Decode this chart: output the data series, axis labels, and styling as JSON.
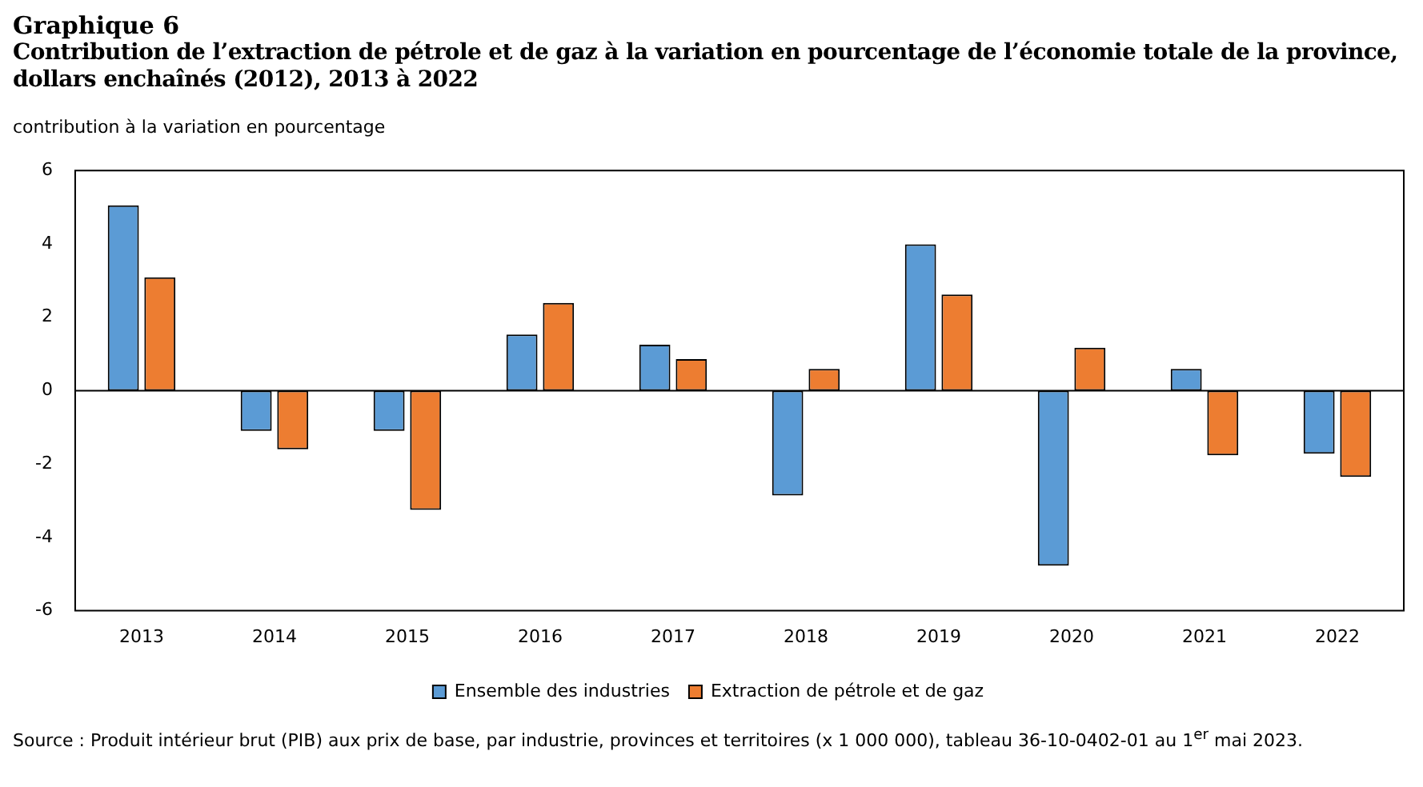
{
  "chart_data": {
    "type": "bar",
    "title": "Graphique 6",
    "subtitle": "Contribution de l’extraction de pétrole et de gaz à la variation en pourcentage de l’économie totale de la province, dollars enchaînés (2012), 2013 à 2022",
    "ylabel": "contribution à la variation en pourcentage",
    "categories": [
      "2013",
      "2014",
      "2015",
      "2016",
      "2017",
      "2018",
      "2019",
      "2020",
      "2021",
      "2022"
    ],
    "series": [
      {
        "name": "Ensemble des industries",
        "color": "#5b9bd5",
        "values": [
          5.05,
          -1.1,
          -1.1,
          1.53,
          1.25,
          -2.86,
          3.99,
          -4.77,
          0.59,
          -1.72
        ]
      },
      {
        "name": "Extraction de pétrole et de gaz",
        "color": "#ed7d31",
        "values": [
          3.09,
          -1.6,
          -3.25,
          2.39,
          0.86,
          0.59,
          2.62,
          1.17,
          -1.76,
          -2.35
        ]
      }
    ],
    "ylim": [
      -6,
      6
    ],
    "yticks": [
      -6,
      -4,
      -2,
      0,
      2,
      4,
      6
    ],
    "legend": "bottom",
    "annotations": [
      "Source : Produit intérieur brut (PIB) aux prix de base, par industrie, provinces et territoires (x 1 000 000), tableau 36-10-0402-01 au 1$^{er}$ mai 2023."
    ]
  }
}
